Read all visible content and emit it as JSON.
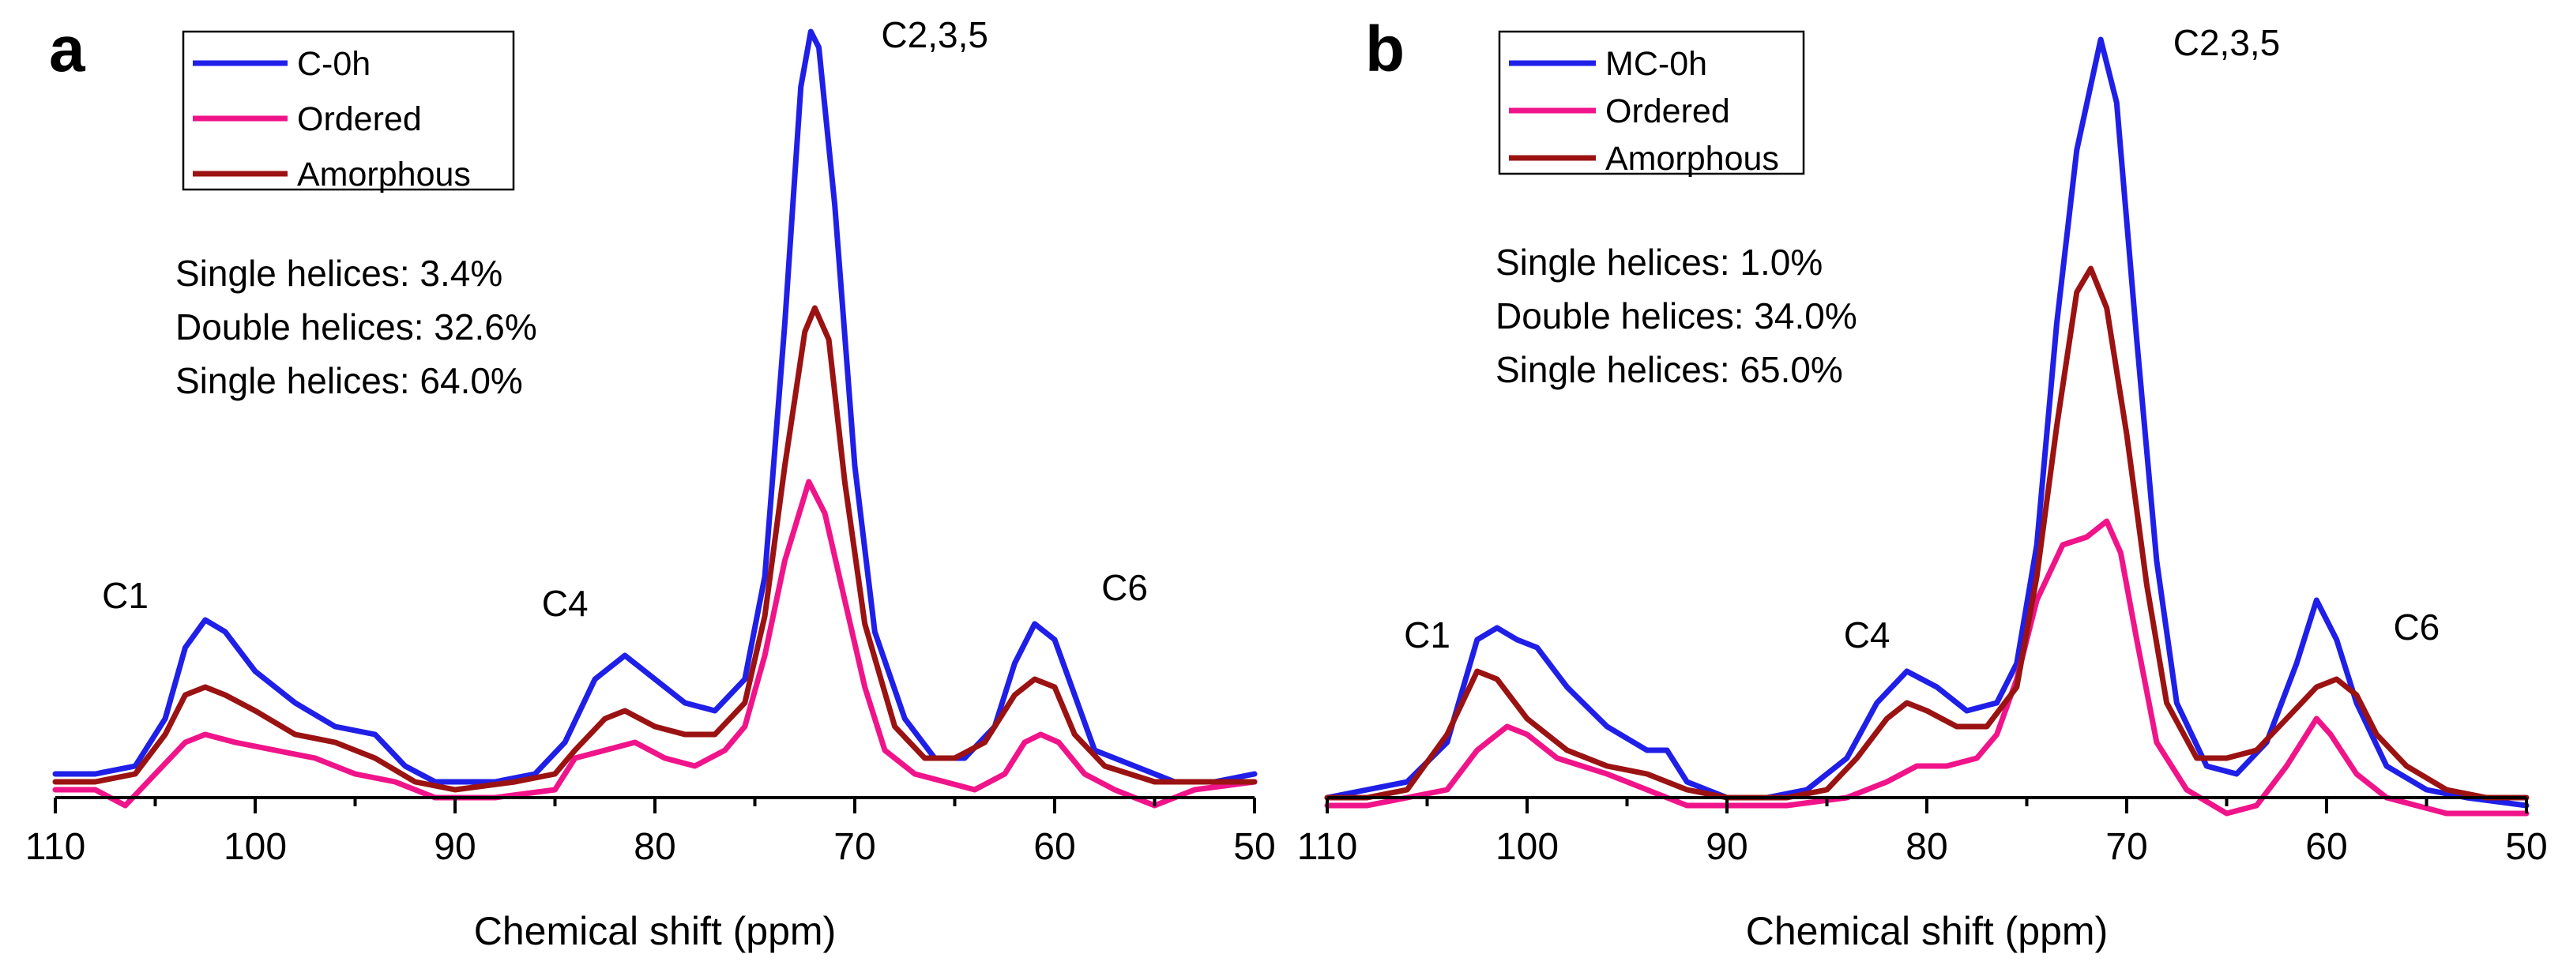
{
  "chart_data": [
    {
      "type": "line",
      "panel": "a",
      "xlabel": "Chemical shift (ppm)",
      "ylabel": "",
      "xlim": [
        110,
        50
      ],
      "xticks": [
        110,
        100,
        90,
        80,
        70,
        60,
        50
      ],
      "ylim": [
        0,
        1
      ],
      "legend": {
        "placement": "top-left",
        "entries": [
          "C-0h",
          "Ordered",
          "Amorphous"
        ]
      },
      "peak_labels": [
        {
          "text": "C1",
          "x": 106.5,
          "y": 0.24
        },
        {
          "text": "C4",
          "x": 84.5,
          "y": 0.23
        },
        {
          "text": "C2,3,5",
          "x": 66,
          "y": 0.95
        },
        {
          "text": "C6",
          "x": 56.5,
          "y": 0.25
        }
      ],
      "annotations": [
        "Single helices: 3.4%",
        "Double helices: 32.6%",
        "Single helices: 64.0%"
      ],
      "series": [
        {
          "name": "C-0h",
          "color": "#1f1fe8",
          "points": [
            [
              110,
              0.03
            ],
            [
              108,
              0.03
            ],
            [
              106,
              0.04
            ],
            [
              104.5,
              0.1
            ],
            [
              103.5,
              0.19
            ],
            [
              102.5,
              0.225
            ],
            [
              101.5,
              0.21
            ],
            [
              100,
              0.16
            ],
            [
              98,
              0.12
            ],
            [
              96,
              0.09
            ],
            [
              94,
              0.08
            ],
            [
              92.5,
              0.04
            ],
            [
              91,
              0.02
            ],
            [
              88,
              0.02
            ],
            [
              86,
              0.03
            ],
            [
              84.5,
              0.07
            ],
            [
              83,
              0.15
            ],
            [
              81.5,
              0.18
            ],
            [
              80,
              0.15
            ],
            [
              78.5,
              0.12
            ],
            [
              77,
              0.11
            ],
            [
              75.5,
              0.15
            ],
            [
              74.5,
              0.28
            ],
            [
              73.5,
              0.6
            ],
            [
              72.7,
              0.9
            ],
            [
              72.2,
              0.97
            ],
            [
              71.8,
              0.95
            ],
            [
              71,
              0.75
            ],
            [
              70,
              0.42
            ],
            [
              69,
              0.21
            ],
            [
              67.5,
              0.1
            ],
            [
              66,
              0.05
            ],
            [
              64.5,
              0.05
            ],
            [
              63,
              0.09
            ],
            [
              62,
              0.17
            ],
            [
              61,
              0.22
            ],
            [
              60,
              0.2
            ],
            [
              59,
              0.13
            ],
            [
              58,
              0.06
            ],
            [
              56,
              0.04
            ],
            [
              54,
              0.02
            ],
            [
              52,
              0.02
            ],
            [
              50,
              0.03
            ]
          ]
        },
        {
          "name": "Ordered",
          "color": "#f0148a",
          "points": [
            [
              110,
              0.01
            ],
            [
              108,
              0.01
            ],
            [
              106.5,
              -0.01
            ],
            [
              105,
              0.03
            ],
            [
              103.5,
              0.07
            ],
            [
              102.5,
              0.08
            ],
            [
              101,
              0.07
            ],
            [
              99,
              0.06
            ],
            [
              97,
              0.05
            ],
            [
              95,
              0.03
            ],
            [
              93,
              0.02
            ],
            [
              91,
              0.0
            ],
            [
              88,
              0.0
            ],
            [
              85,
              0.01
            ],
            [
              84,
              0.05
            ],
            [
              82.5,
              0.06
            ],
            [
              81,
              0.07
            ],
            [
              79.5,
              0.05
            ],
            [
              78,
              0.04
            ],
            [
              76.5,
              0.06
            ],
            [
              75.5,
              0.09
            ],
            [
              74.5,
              0.18
            ],
            [
              73.5,
              0.3
            ],
            [
              72.3,
              0.4
            ],
            [
              71.5,
              0.36
            ],
            [
              70.5,
              0.25
            ],
            [
              69.5,
              0.14
            ],
            [
              68.5,
              0.06
            ],
            [
              67,
              0.03
            ],
            [
              65.5,
              0.02
            ],
            [
              64,
              0.01
            ],
            [
              62.5,
              0.03
            ],
            [
              61.5,
              0.07
            ],
            [
              60.7,
              0.08
            ],
            [
              59.8,
              0.07
            ],
            [
              58.5,
              0.03
            ],
            [
              57,
              0.01
            ],
            [
              55,
              -0.01
            ],
            [
              53,
              0.01
            ],
            [
              50,
              0.02
            ]
          ]
        },
        {
          "name": "Amorphous",
          "color": "#9b1212",
          "points": [
            [
              110,
              0.02
            ],
            [
              108,
              0.02
            ],
            [
              106,
              0.03
            ],
            [
              104.5,
              0.08
            ],
            [
              103.5,
              0.13
            ],
            [
              102.5,
              0.14
            ],
            [
              101.5,
              0.13
            ],
            [
              100,
              0.11
            ],
            [
              98,
              0.08
            ],
            [
              96,
              0.07
            ],
            [
              94,
              0.05
            ],
            [
              92,
              0.02
            ],
            [
              90,
              0.01
            ],
            [
              87,
              0.02
            ],
            [
              85,
              0.03
            ],
            [
              84,
              0.06
            ],
            [
              82.5,
              0.1
            ],
            [
              81.5,
              0.11
            ],
            [
              80,
              0.09
            ],
            [
              78.5,
              0.08
            ],
            [
              77,
              0.08
            ],
            [
              75.5,
              0.12
            ],
            [
              74.5,
              0.23
            ],
            [
              73.5,
              0.42
            ],
            [
              72.5,
              0.59
            ],
            [
              72,
              0.62
            ],
            [
              71.3,
              0.58
            ],
            [
              70.5,
              0.4
            ],
            [
              69.5,
              0.22
            ],
            [
              68,
              0.09
            ],
            [
              66.5,
              0.05
            ],
            [
              65,
              0.05
            ],
            [
              63.5,
              0.07
            ],
            [
              62,
              0.13
            ],
            [
              61,
              0.15
            ],
            [
              60,
              0.14
            ],
            [
              59,
              0.08
            ],
            [
              57.5,
              0.04
            ],
            [
              55,
              0.02
            ],
            [
              52,
              0.02
            ],
            [
              50,
              0.02
            ]
          ]
        }
      ]
    },
    {
      "type": "line",
      "panel": "b",
      "xlabel": "Chemical shift (ppm)",
      "ylabel": "",
      "xlim": [
        110,
        50
      ],
      "xticks": [
        110,
        100,
        90,
        80,
        70,
        60,
        50
      ],
      "ylim": [
        0,
        1
      ],
      "legend": {
        "placement": "top-left",
        "entries": [
          "MC-0h",
          "Ordered",
          "Amorphous"
        ]
      },
      "peak_labels": [
        {
          "text": "C1",
          "x": 105,
          "y": 0.19
        },
        {
          "text": "C4",
          "x": 83,
          "y": 0.19
        },
        {
          "text": "C2,3,5",
          "x": 65,
          "y": 0.94
        },
        {
          "text": "C6",
          "x": 55.5,
          "y": 0.2
        }
      ],
      "annotations": [
        "Single helices: 1.0%",
        "Double helices: 34.0%",
        "Single helices: 65.0%"
      ],
      "series": [
        {
          "name": "MC-0h",
          "color": "#1f1fe8",
          "points": [
            [
              110,
              0.0
            ],
            [
              108,
              0.01
            ],
            [
              106,
              0.02
            ],
            [
              104,
              0.07
            ],
            [
              102.5,
              0.2
            ],
            [
              101.5,
              0.215
            ],
            [
              100.5,
              0.2
            ],
            [
              99.5,
              0.19
            ],
            [
              98,
              0.14
            ],
            [
              96,
              0.09
            ],
            [
              94,
              0.06
            ],
            [
              93,
              0.06
            ],
            [
              92,
              0.02
            ],
            [
              90,
              0.0
            ],
            [
              88,
              0.0
            ],
            [
              86,
              0.01
            ],
            [
              84,
              0.05
            ],
            [
              82.5,
              0.12
            ],
            [
              81,
              0.16
            ],
            [
              79.5,
              0.14
            ],
            [
              78,
              0.11
            ],
            [
              76.5,
              0.12
            ],
            [
              75.5,
              0.17
            ],
            [
              74.5,
              0.32
            ],
            [
              73.5,
              0.6
            ],
            [
              72.5,
              0.82
            ],
            [
              71.3,
              0.96
            ],
            [
              70.5,
              0.88
            ],
            [
              69.5,
              0.58
            ],
            [
              68.5,
              0.3
            ],
            [
              67.5,
              0.12
            ],
            [
              66,
              0.04
            ],
            [
              64.5,
              0.03
            ],
            [
              63,
              0.07
            ],
            [
              61.5,
              0.17
            ],
            [
              60.5,
              0.25
            ],
            [
              59.5,
              0.2
            ],
            [
              58.5,
              0.12
            ],
            [
              57,
              0.04
            ],
            [
              55,
              0.01
            ],
            [
              53,
              0.0
            ],
            [
              50,
              -0.01
            ]
          ]
        },
        {
          "name": "Ordered",
          "color": "#f0148a",
          "points": [
            [
              110,
              -0.01
            ],
            [
              108,
              -0.01
            ],
            [
              106,
              0.0
            ],
            [
              104,
              0.01
            ],
            [
              102.5,
              0.06
            ],
            [
              101,
              0.09
            ],
            [
              100,
              0.08
            ],
            [
              98.5,
              0.05
            ],
            [
              96,
              0.03
            ],
            [
              94,
              0.01
            ],
            [
              92,
              -0.01
            ],
            [
              90,
              -0.01
            ],
            [
              87,
              -0.01
            ],
            [
              84,
              0.0
            ],
            [
              82,
              0.02
            ],
            [
              80.5,
              0.04
            ],
            [
              79,
              0.04
            ],
            [
              77.5,
              0.05
            ],
            [
              76.5,
              0.08
            ],
            [
              75.5,
              0.15
            ],
            [
              74.5,
              0.25
            ],
            [
              73.2,
              0.32
            ],
            [
              72,
              0.33
            ],
            [
              71,
              0.35
            ],
            [
              70.3,
              0.31
            ],
            [
              69.5,
              0.2
            ],
            [
              68.5,
              0.07
            ],
            [
              67,
              0.01
            ],
            [
              65,
              -0.02
            ],
            [
              63.5,
              -0.01
            ],
            [
              62,
              0.04
            ],
            [
              61,
              0.08
            ],
            [
              60.5,
              0.1
            ],
            [
              59.8,
              0.08
            ],
            [
              58.5,
              0.03
            ],
            [
              57,
              0.0
            ],
            [
              54,
              -0.02
            ],
            [
              52,
              -0.02
            ],
            [
              50,
              -0.02
            ]
          ]
        },
        {
          "name": "Amorphous",
          "color": "#9b1212",
          "points": [
            [
              110,
              0.0
            ],
            [
              108,
              0.0
            ],
            [
              106,
              0.01
            ],
            [
              104,
              0.08
            ],
            [
              102.5,
              0.16
            ],
            [
              101.5,
              0.15
            ],
            [
              100,
              0.1
            ],
            [
              98,
              0.06
            ],
            [
              96,
              0.04
            ],
            [
              94,
              0.03
            ],
            [
              92,
              0.01
            ],
            [
              90,
              0.0
            ],
            [
              87,
              0.0
            ],
            [
              85,
              0.01
            ],
            [
              83.5,
              0.05
            ],
            [
              82,
              0.1
            ],
            [
              81,
              0.12
            ],
            [
              80,
              0.11
            ],
            [
              78.5,
              0.09
            ],
            [
              77,
              0.09
            ],
            [
              75.5,
              0.14
            ],
            [
              74.5,
              0.28
            ],
            [
              73.5,
              0.47
            ],
            [
              72.5,
              0.64
            ],
            [
              71.8,
              0.67
            ],
            [
              71,
              0.62
            ],
            [
              70,
              0.46
            ],
            [
              69,
              0.27
            ],
            [
              68,
              0.12
            ],
            [
              66.5,
              0.05
            ],
            [
              65,
              0.05
            ],
            [
              63.5,
              0.06
            ],
            [
              62,
              0.1
            ],
            [
              60.5,
              0.14
            ],
            [
              59.5,
              0.15
            ],
            [
              58.5,
              0.13
            ],
            [
              57.5,
              0.08
            ],
            [
              56,
              0.04
            ],
            [
              54,
              0.01
            ],
            [
              52,
              0.0
            ],
            [
              50,
              0.0
            ]
          ]
        }
      ]
    }
  ]
}
